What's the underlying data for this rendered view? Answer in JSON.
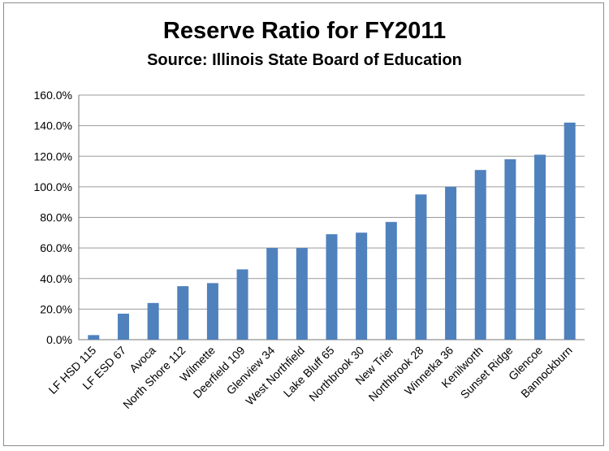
{
  "chart_data": {
    "type": "bar",
    "title": "Reserve Ratio for FY2011",
    "subtitle": "Source: Illinois State Board of Education",
    "xlabel": "",
    "ylabel": "",
    "ylim": [
      0,
      160
    ],
    "yticks": [
      "0.0%",
      "20.0%",
      "40.0%",
      "60.0%",
      "80.0%",
      "100.0%",
      "120.0%",
      "140.0%",
      "160.0%"
    ],
    "grid": true,
    "legend": "none",
    "bar_color": "#4f81bd",
    "categories": [
      "LF HSD 115",
      "LF ESD 67",
      "Avoca",
      "North Shore 112",
      "Wilmette",
      "Deerfield 109",
      "Glenview 34",
      "West Northfield",
      "Lake Bluff 65",
      "Northbrook 30",
      "New Trier",
      "Northbrook 28",
      "Winnetka 36",
      "Kenilworth",
      "Sunset Ridge",
      "Glencoe",
      "Bannockburn"
    ],
    "values": [
      3,
      17,
      24,
      35,
      37,
      46,
      60,
      60,
      69,
      70,
      77,
      95,
      100,
      111,
      118,
      121,
      142
    ]
  }
}
